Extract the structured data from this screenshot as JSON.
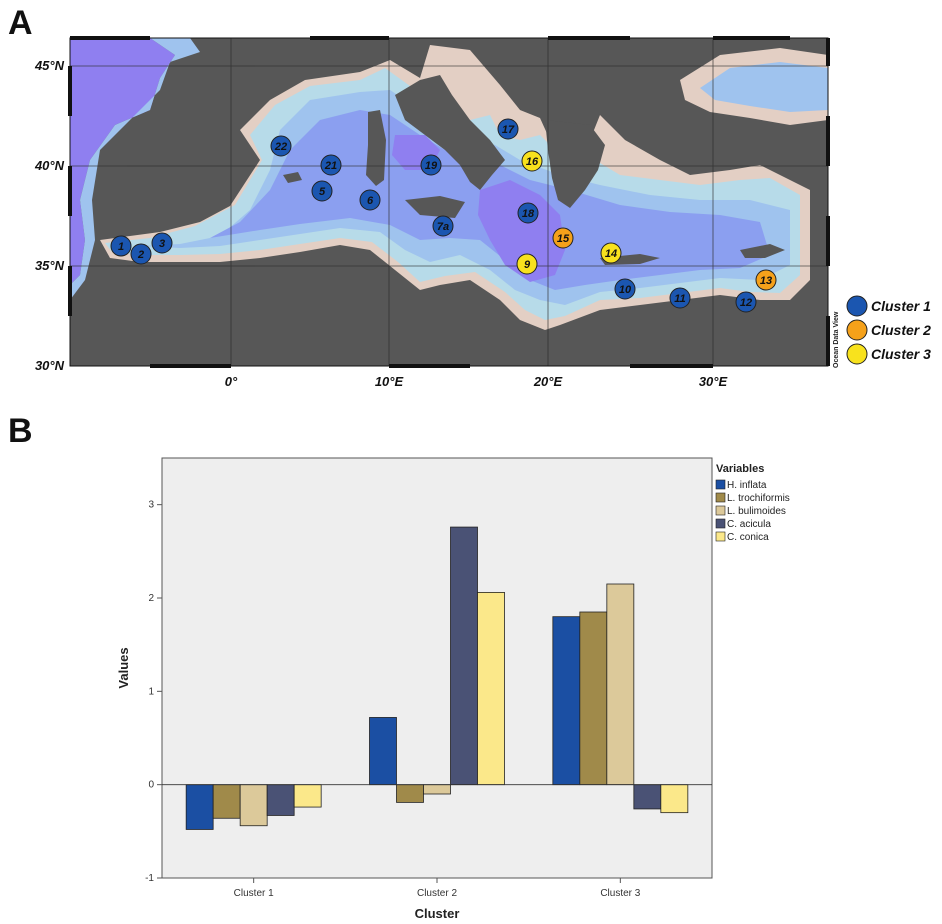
{
  "panel_a": {
    "letter": "A",
    "lat_labels": [
      "45°N",
      "40°N",
      "35°N",
      "30°N"
    ],
    "lon_labels": [
      "0°",
      "10°E",
      "20°E",
      "30°E"
    ],
    "watermark": "Ocean Data View",
    "colors": {
      "land": "#575757",
      "shelf": "#e3cfc4",
      "shallow": "#b7dbe9",
      "mid": "#9fc3ee",
      "deep": "#8b9ff0",
      "deepest": "#8f7ff0",
      "cluster1": "#1b56b0",
      "cluster2": "#f5a11a",
      "cluster3": "#f8e21d"
    },
    "stations": [
      {
        "label": "1",
        "cluster": 1
      },
      {
        "label": "2",
        "cluster": 1
      },
      {
        "label": "3",
        "cluster": 1
      },
      {
        "label": "22",
        "cluster": 1
      },
      {
        "label": "21",
        "cluster": 1
      },
      {
        "label": "5",
        "cluster": 1
      },
      {
        "label": "6",
        "cluster": 1
      },
      {
        "label": "19",
        "cluster": 1
      },
      {
        "label": "7a",
        "cluster": 1
      },
      {
        "label": "17",
        "cluster": 1
      },
      {
        "label": "16",
        "cluster": 3
      },
      {
        "label": "18",
        "cluster": 1
      },
      {
        "label": "15",
        "cluster": 2
      },
      {
        "label": "9",
        "cluster": 3
      },
      {
        "label": "14",
        "cluster": 3
      },
      {
        "label": "10",
        "cluster": 1
      },
      {
        "label": "11",
        "cluster": 1
      },
      {
        "label": "12",
        "cluster": 1
      },
      {
        "label": "13",
        "cluster": 2
      }
    ],
    "legend": [
      {
        "label": "Cluster 1",
        "color": "#1b56b0"
      },
      {
        "label": "Cluster 2",
        "color": "#f5a11a"
      },
      {
        "label": "Cluster 3",
        "color": "#f8e21d"
      }
    ]
  },
  "panel_b": {
    "letter": "B",
    "legend_title": "Variables",
    "background": "#eeeeee"
  },
  "chart_data": {
    "type": "bar",
    "categories": [
      "Cluster 1",
      "Cluster 2",
      "Cluster 3"
    ],
    "series": [
      {
        "name": "H. inflata",
        "color": "#1b4fa3",
        "values": [
          -0.48,
          0.72,
          1.8
        ]
      },
      {
        "name": "L. trochiformis",
        "color": "#a08a4a",
        "values": [
          -0.36,
          -0.19,
          1.85
        ]
      },
      {
        "name": "L. bulimoides",
        "color": "#dcc99a",
        "values": [
          -0.44,
          -0.1,
          2.15
        ]
      },
      {
        "name": "C. acicula",
        "color": "#4a5275",
        "values": [
          -0.33,
          2.76,
          -0.26
        ]
      },
      {
        "name": "C. conica",
        "color": "#fbe88a",
        "values": [
          -0.24,
          2.06,
          -0.3
        ]
      }
    ],
    "xlabel": "Cluster",
    "ylabel": "Values",
    "ylim": [
      -1,
      3.5
    ],
    "yticks": [
      "-1",
      "0",
      "1",
      "2",
      "3"
    ],
    "legend_position": "right",
    "grid": false
  }
}
